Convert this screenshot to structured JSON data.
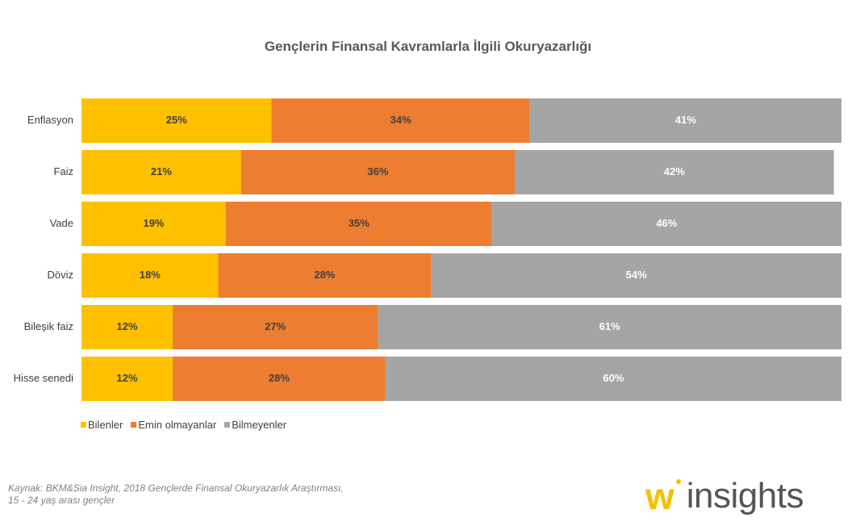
{
  "chart_data": {
    "type": "bar",
    "orientation": "horizontal",
    "stacked": true,
    "title": "Gençlerin Finansal Kavramlarla İlgili Okuryazarlığı",
    "categories": [
      "Enflasyon",
      "Faiz",
      "Vade",
      "Döviz",
      "Bileşik faiz",
      "Hisse senedi"
    ],
    "series": [
      {
        "name": "Bilenler",
        "color": "#FFC000",
        "label_color": "#404040",
        "values": [
          25,
          21,
          19,
          18,
          12,
          12
        ]
      },
      {
        "name": "Emin olmayanlar",
        "color": "#ED7D31",
        "label_color": "#404040",
        "values": [
          34,
          36,
          35,
          28,
          27,
          28
        ]
      },
      {
        "name": "Bilmeyenler",
        "color": "#A5A5A5",
        "label_color": "#FFFFFF",
        "values": [
          41,
          42,
          46,
          54,
          61,
          60
        ]
      }
    ],
    "value_suffix": "%",
    "xlim": [
      0,
      100
    ],
    "grid": false,
    "legend": "bottom-left"
  },
  "source": {
    "line1": "Kaynak: BKM&Sia  Insight, 2018 Gençlerde Finansal Okuryazarlık Araştırması,",
    "line2": "15 - 24 yaş arası gençler"
  },
  "logo": {
    "mark": "w",
    "text": "insights"
  }
}
